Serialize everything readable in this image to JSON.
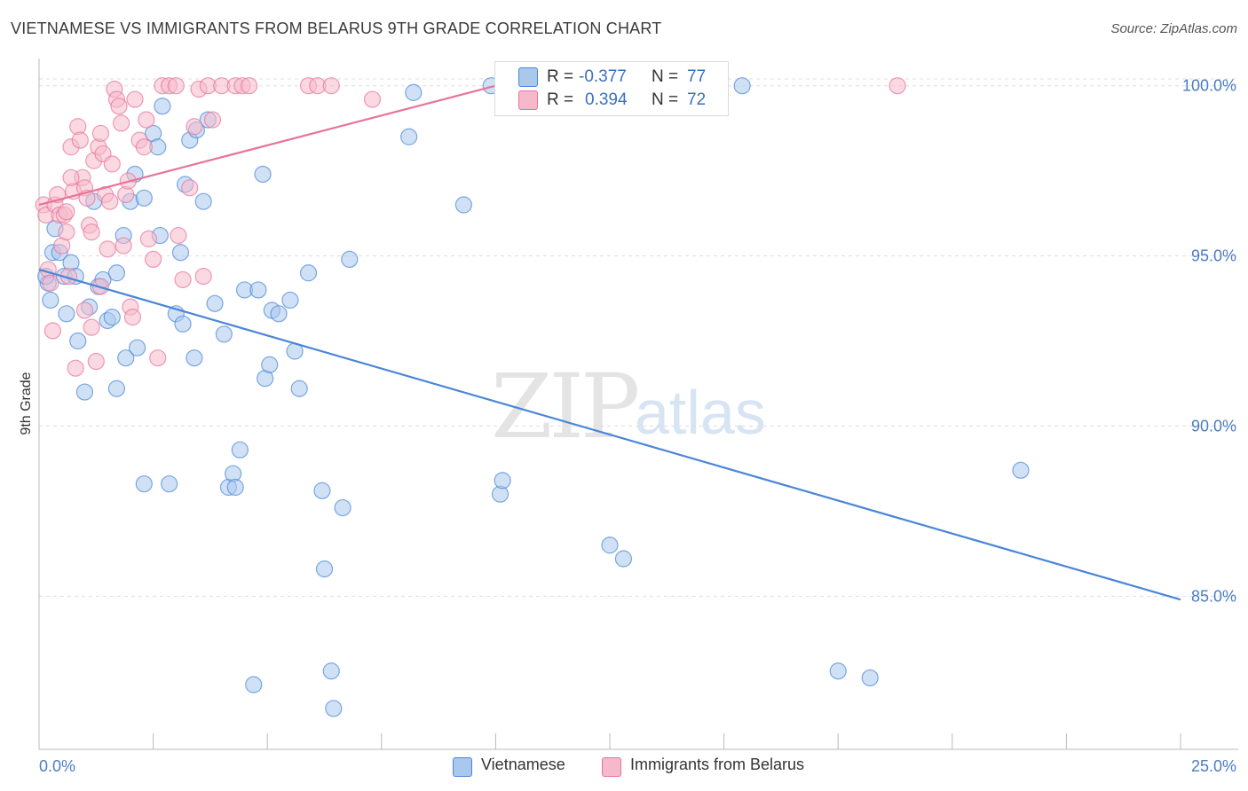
{
  "header": {
    "title": "VIETNAMESE VS IMMIGRANTS FROM BELARUS 9TH GRADE CORRELATION CHART",
    "source": "Source: ZipAtlas.com"
  },
  "watermark": {
    "zip": "ZIP",
    "atlas": "atlas"
  },
  "legend": {
    "rows": [
      {
        "r_label": "R =",
        "r_value": "-0.377",
        "n_label": "N =",
        "n_value": "77",
        "color": "#aac8ee"
      },
      {
        "r_label": "R =",
        "r_value": "0.394",
        "n_label": "N =",
        "n_value": "72",
        "color": "#f6b9cb"
      }
    ]
  },
  "bottom_legend": {
    "items": [
      {
        "label": "Vietnamese",
        "color": "#aac8ee"
      },
      {
        "label": "Immigrants from Belarus",
        "color": "#f6b9cb"
      }
    ]
  },
  "chart_data": {
    "type": "scatter",
    "title": "VIETNAMESE VS IMMIGRANTS FROM BELARUS 9TH GRADE CORRELATION CHART",
    "xlabel": "",
    "ylabel": "9th Grade",
    "xlim": [
      0,
      25
    ],
    "ylim": [
      80.5,
      100.8
    ],
    "x_tick_labels": [
      "0.0%",
      "25.0%"
    ],
    "y_ticks": [
      85,
      90,
      95,
      100
    ],
    "y_tick_labels": [
      "85.0%",
      "90.0%",
      "95.0%",
      "100.0%"
    ],
    "grid": true,
    "series": [
      {
        "name": "Vietnamese",
        "color": "#4a86d8",
        "fill": "#aac8ee",
        "trend": {
          "x": [
            0,
            25
          ],
          "y": [
            94.6,
            84.9
          ]
        },
        "points": [
          [
            0.2,
            94.2
          ],
          [
            0.25,
            93.7
          ],
          [
            0.3,
            95.1
          ],
          [
            0.35,
            95.8
          ],
          [
            0.45,
            95.1
          ],
          [
            0.55,
            94.4
          ],
          [
            0.6,
            93.3
          ],
          [
            0.7,
            94.8
          ],
          [
            0.8,
            94.4
          ],
          [
            0.85,
            92.5
          ],
          [
            1.0,
            91.0
          ],
          [
            1.1,
            93.5
          ],
          [
            1.2,
            96.6
          ],
          [
            1.3,
            94.1
          ],
          [
            1.4,
            94.3
          ],
          [
            1.5,
            93.1
          ],
          [
            1.6,
            93.2
          ],
          [
            1.7,
            94.5
          ],
          [
            1.7,
            91.1
          ],
          [
            1.85,
            95.6
          ],
          [
            1.9,
            92.0
          ],
          [
            2.0,
            96.6
          ],
          [
            2.1,
            97.4
          ],
          [
            2.15,
            92.3
          ],
          [
            2.3,
            96.7
          ],
          [
            2.3,
            88.3
          ],
          [
            2.5,
            98.6
          ],
          [
            2.6,
            98.2
          ],
          [
            2.65,
            95.6
          ],
          [
            2.7,
            99.4
          ],
          [
            2.85,
            88.3
          ],
          [
            3.0,
            93.3
          ],
          [
            3.1,
            95.1
          ],
          [
            3.15,
            93.0
          ],
          [
            3.2,
            97.1
          ],
          [
            3.3,
            98.4
          ],
          [
            3.4,
            92.0
          ],
          [
            3.45,
            98.7
          ],
          [
            3.6,
            96.6
          ],
          [
            3.7,
            99.0
          ],
          [
            3.85,
            93.6
          ],
          [
            4.05,
            92.7
          ],
          [
            4.15,
            88.2
          ],
          [
            4.25,
            88.6
          ],
          [
            4.3,
            88.2
          ],
          [
            4.4,
            89.3
          ],
          [
            4.5,
            94.0
          ],
          [
            4.7,
            82.4
          ],
          [
            4.8,
            94.0
          ],
          [
            4.9,
            97.4
          ],
          [
            4.95,
            91.4
          ],
          [
            5.05,
            91.8
          ],
          [
            5.1,
            93.4
          ],
          [
            5.25,
            93.3
          ],
          [
            5.5,
            93.7
          ],
          [
            5.6,
            92.2
          ],
          [
            5.7,
            91.1
          ],
          [
            5.9,
            94.5
          ],
          [
            6.2,
            88.1
          ],
          [
            6.25,
            85.8
          ],
          [
            6.4,
            82.8
          ],
          [
            6.45,
            81.7
          ],
          [
            6.65,
            87.6
          ],
          [
            6.8,
            94.9
          ],
          [
            8.1,
            98.5
          ],
          [
            8.2,
            99.8
          ],
          [
            9.3,
            96.5
          ],
          [
            9.9,
            100.0
          ],
          [
            10.1,
            88.0
          ],
          [
            10.15,
            88.4
          ],
          [
            12.5,
            86.5
          ],
          [
            12.8,
            86.1
          ],
          [
            15.4,
            100.0
          ],
          [
            17.5,
            82.8
          ],
          [
            18.2,
            82.6
          ],
          [
            21.5,
            88.7
          ],
          [
            0.15,
            94.4
          ]
        ]
      },
      {
        "name": "Immigrants from Belarus",
        "color": "#e8739a",
        "fill": "#f6b9cb",
        "trend": {
          "x": [
            0,
            10
          ],
          "y": [
            96.5,
            100.0
          ]
        },
        "points": [
          [
            0.1,
            96.5
          ],
          [
            0.15,
            96.2
          ],
          [
            0.2,
            94.6
          ],
          [
            0.25,
            94.2
          ],
          [
            0.3,
            92.8
          ],
          [
            0.35,
            96.5
          ],
          [
            0.4,
            96.8
          ],
          [
            0.45,
            96.2
          ],
          [
            0.5,
            95.3
          ],
          [
            0.55,
            96.2
          ],
          [
            0.6,
            95.7
          ],
          [
            0.65,
            94.4
          ],
          [
            0.7,
            98.2
          ],
          [
            0.75,
            96.9
          ],
          [
            0.8,
            91.7
          ],
          [
            0.85,
            98.8
          ],
          [
            0.9,
            98.4
          ],
          [
            0.95,
            97.3
          ],
          [
            1.0,
            97.0
          ],
          [
            1.05,
            96.7
          ],
          [
            1.1,
            95.9
          ],
          [
            1.15,
            95.7
          ],
          [
            1.2,
            97.8
          ],
          [
            1.25,
            91.9
          ],
          [
            1.3,
            98.2
          ],
          [
            1.35,
            98.6
          ],
          [
            1.4,
            98.0
          ],
          [
            1.45,
            96.8
          ],
          [
            1.5,
            95.2
          ],
          [
            1.55,
            96.6
          ],
          [
            1.6,
            97.7
          ],
          [
            1.65,
            99.9
          ],
          [
            1.7,
            99.6
          ],
          [
            1.75,
            99.4
          ],
          [
            1.8,
            98.9
          ],
          [
            1.85,
            95.3
          ],
          [
            1.9,
            96.8
          ],
          [
            1.95,
            97.2
          ],
          [
            2.0,
            93.5
          ],
          [
            2.05,
            93.2
          ],
          [
            2.1,
            99.6
          ],
          [
            2.2,
            98.4
          ],
          [
            2.3,
            98.2
          ],
          [
            2.35,
            99.0
          ],
          [
            2.4,
            95.5
          ],
          [
            2.5,
            94.9
          ],
          [
            2.6,
            92.0
          ],
          [
            2.7,
            100.0
          ],
          [
            2.85,
            100.0
          ],
          [
            3.0,
            100.0
          ],
          [
            3.05,
            95.6
          ],
          [
            3.15,
            94.3
          ],
          [
            3.3,
            97.0
          ],
          [
            3.4,
            98.8
          ],
          [
            3.5,
            99.9
          ],
          [
            3.6,
            94.4
          ],
          [
            3.7,
            100.0
          ],
          [
            3.8,
            99.0
          ],
          [
            4.0,
            100.0
          ],
          [
            4.3,
            100.0
          ],
          [
            4.45,
            100.0
          ],
          [
            4.6,
            100.0
          ],
          [
            5.9,
            100.0
          ],
          [
            6.1,
            100.0
          ],
          [
            6.4,
            100.0
          ],
          [
            7.3,
            99.6
          ],
          [
            1.15,
            92.9
          ],
          [
            0.6,
            96.3
          ],
          [
            1.35,
            94.1
          ],
          [
            18.8,
            100.0
          ],
          [
            1.0,
            93.4
          ],
          [
            0.7,
            97.3
          ]
        ]
      }
    ]
  }
}
